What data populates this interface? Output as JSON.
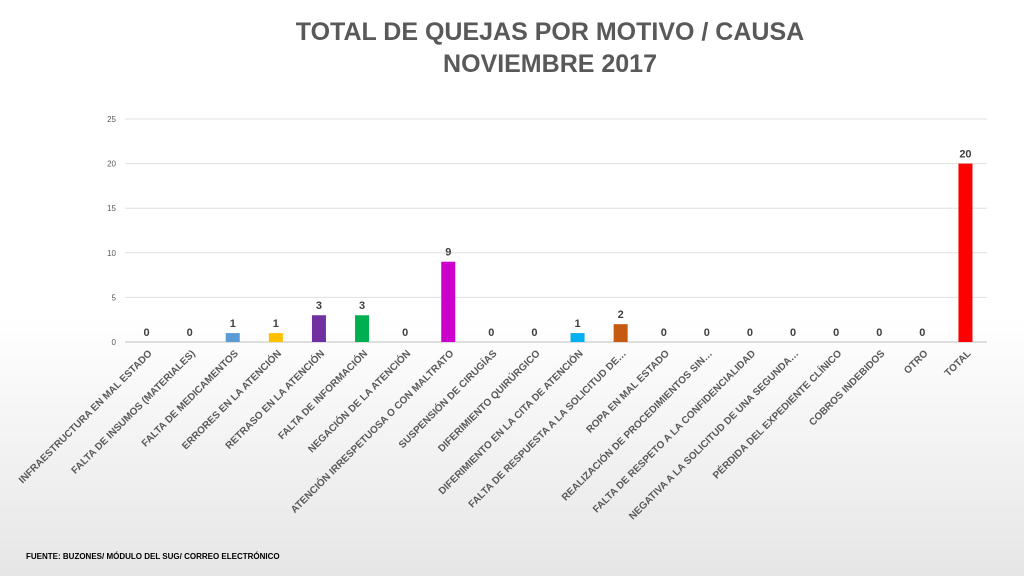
{
  "chart_data": {
    "type": "bar",
    "title": "TOTAL DE QUEJAS POR MOTIVO / CAUSA",
    "subtitle": "NOVIEMBRE 2017",
    "categories": [
      "INFRAESTRUCTURA EN MAL ESTADO",
      "FALTA DE INSUMOS (MATERIALES)",
      "FALTA DE MEDICAMENTOS",
      "ERRORES EN LA ATENCIÓN",
      "RETRASO EN LA ATENCIÓN",
      "FALTA DE INFORMACIÓN",
      "NEGACIÓN DE LA ATENCIÓN",
      "ATENCIÓN IRRESPETUOSA O CON MALTRATO",
      "SUSPENSIÓN DE CIRUGÍAS",
      "DIFERIMIENTO QUIRÚRGICO",
      "DIFERIMIENTO EN LA CITA DE ATENCIÓN",
      "FALTA DE RESPUESTA A LA SOLICITUD DE…",
      "ROPA EN MAL ESTADO",
      "REALIZACIÓN DE PROCEDIMIENTOS SIN…",
      "FALTA DE RESPETO A LA CONFIDENCIALIDAD",
      "NEGATIVA A LA SOLICITUD DE UNA SEGUNDA…",
      "PÉRDIDA DEL EXPEDIENTE CLÍNICO",
      "COBROS INDEBIDOS",
      "OTRO",
      "TOTAL"
    ],
    "values": [
      0,
      0,
      1,
      1,
      3,
      3,
      0,
      9,
      0,
      0,
      1,
      2,
      0,
      0,
      0,
      0,
      0,
      0,
      0,
      20
    ],
    "colors": [
      "#5b9bd5",
      "#5b9bd5",
      "#5b9bd5",
      "#ffc000",
      "#7030a0",
      "#00b050",
      "#00b050",
      "#cc00cc",
      "#cc00cc",
      "#cc00cc",
      "#00b0f0",
      "#c55a11",
      "#c55a11",
      "#c55a11",
      "#c55a11",
      "#c55a11",
      "#c55a11",
      "#c55a11",
      "#c55a11",
      "#ff0000"
    ],
    "ylim": [
      0,
      25
    ],
    "yticks": [
      0,
      5,
      10,
      15,
      20,
      25
    ],
    "grid": true,
    "legend": "none",
    "xlabel": "",
    "ylabel": ""
  },
  "source": "FUENTE: BUZONES/ MÓDULO DEL SUG/ CORREO ELECTRÓNICO"
}
